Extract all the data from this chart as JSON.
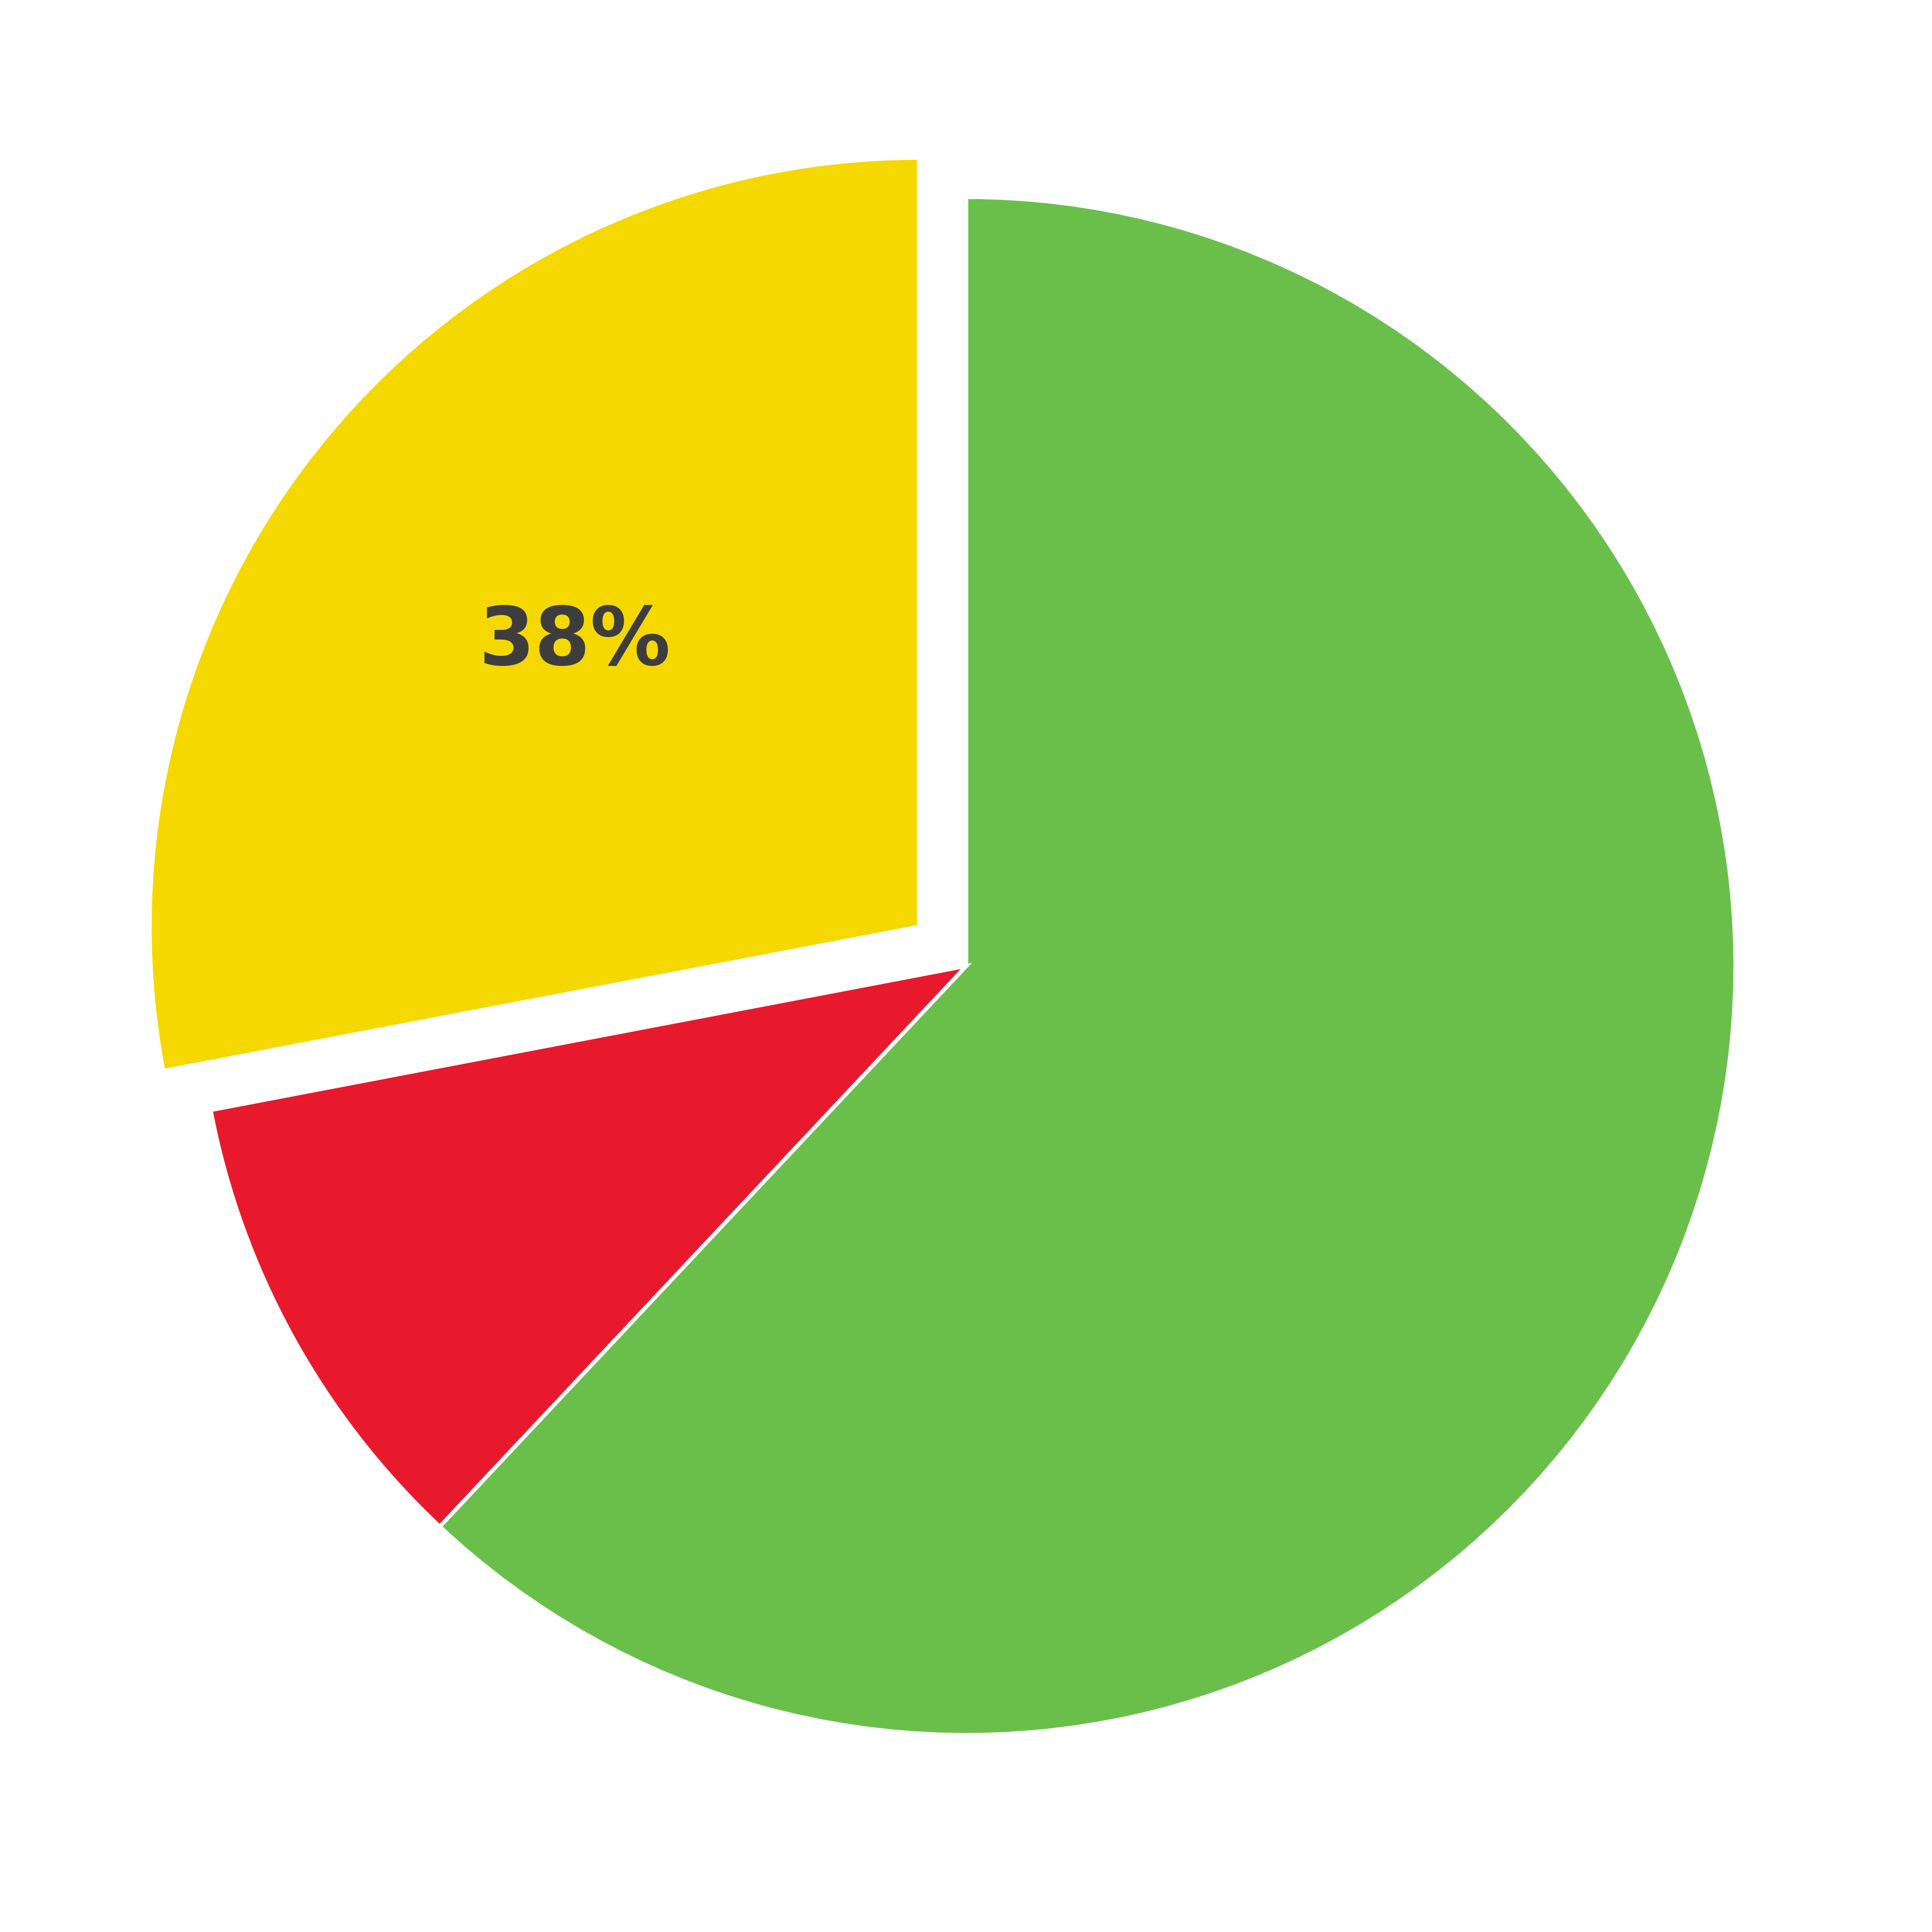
{
  "slices": [
    62,
    10,
    28
  ],
  "colors": [
    "#6abf4b",
    "#e8192c",
    "#f5d800"
  ],
  "explode": [
    0.0,
    0.0,
    0.08
  ],
  "label_text": "38%",
  "label_fontsize": 120,
  "label_color": "#3d3d3d",
  "label_fontweight": "bold",
  "startangle": 90,
  "background_color": "#ffffff",
  "wedge_linewidth": 6,
  "wedge_edgecolor": "#ffffff",
  "counterclock": false
}
